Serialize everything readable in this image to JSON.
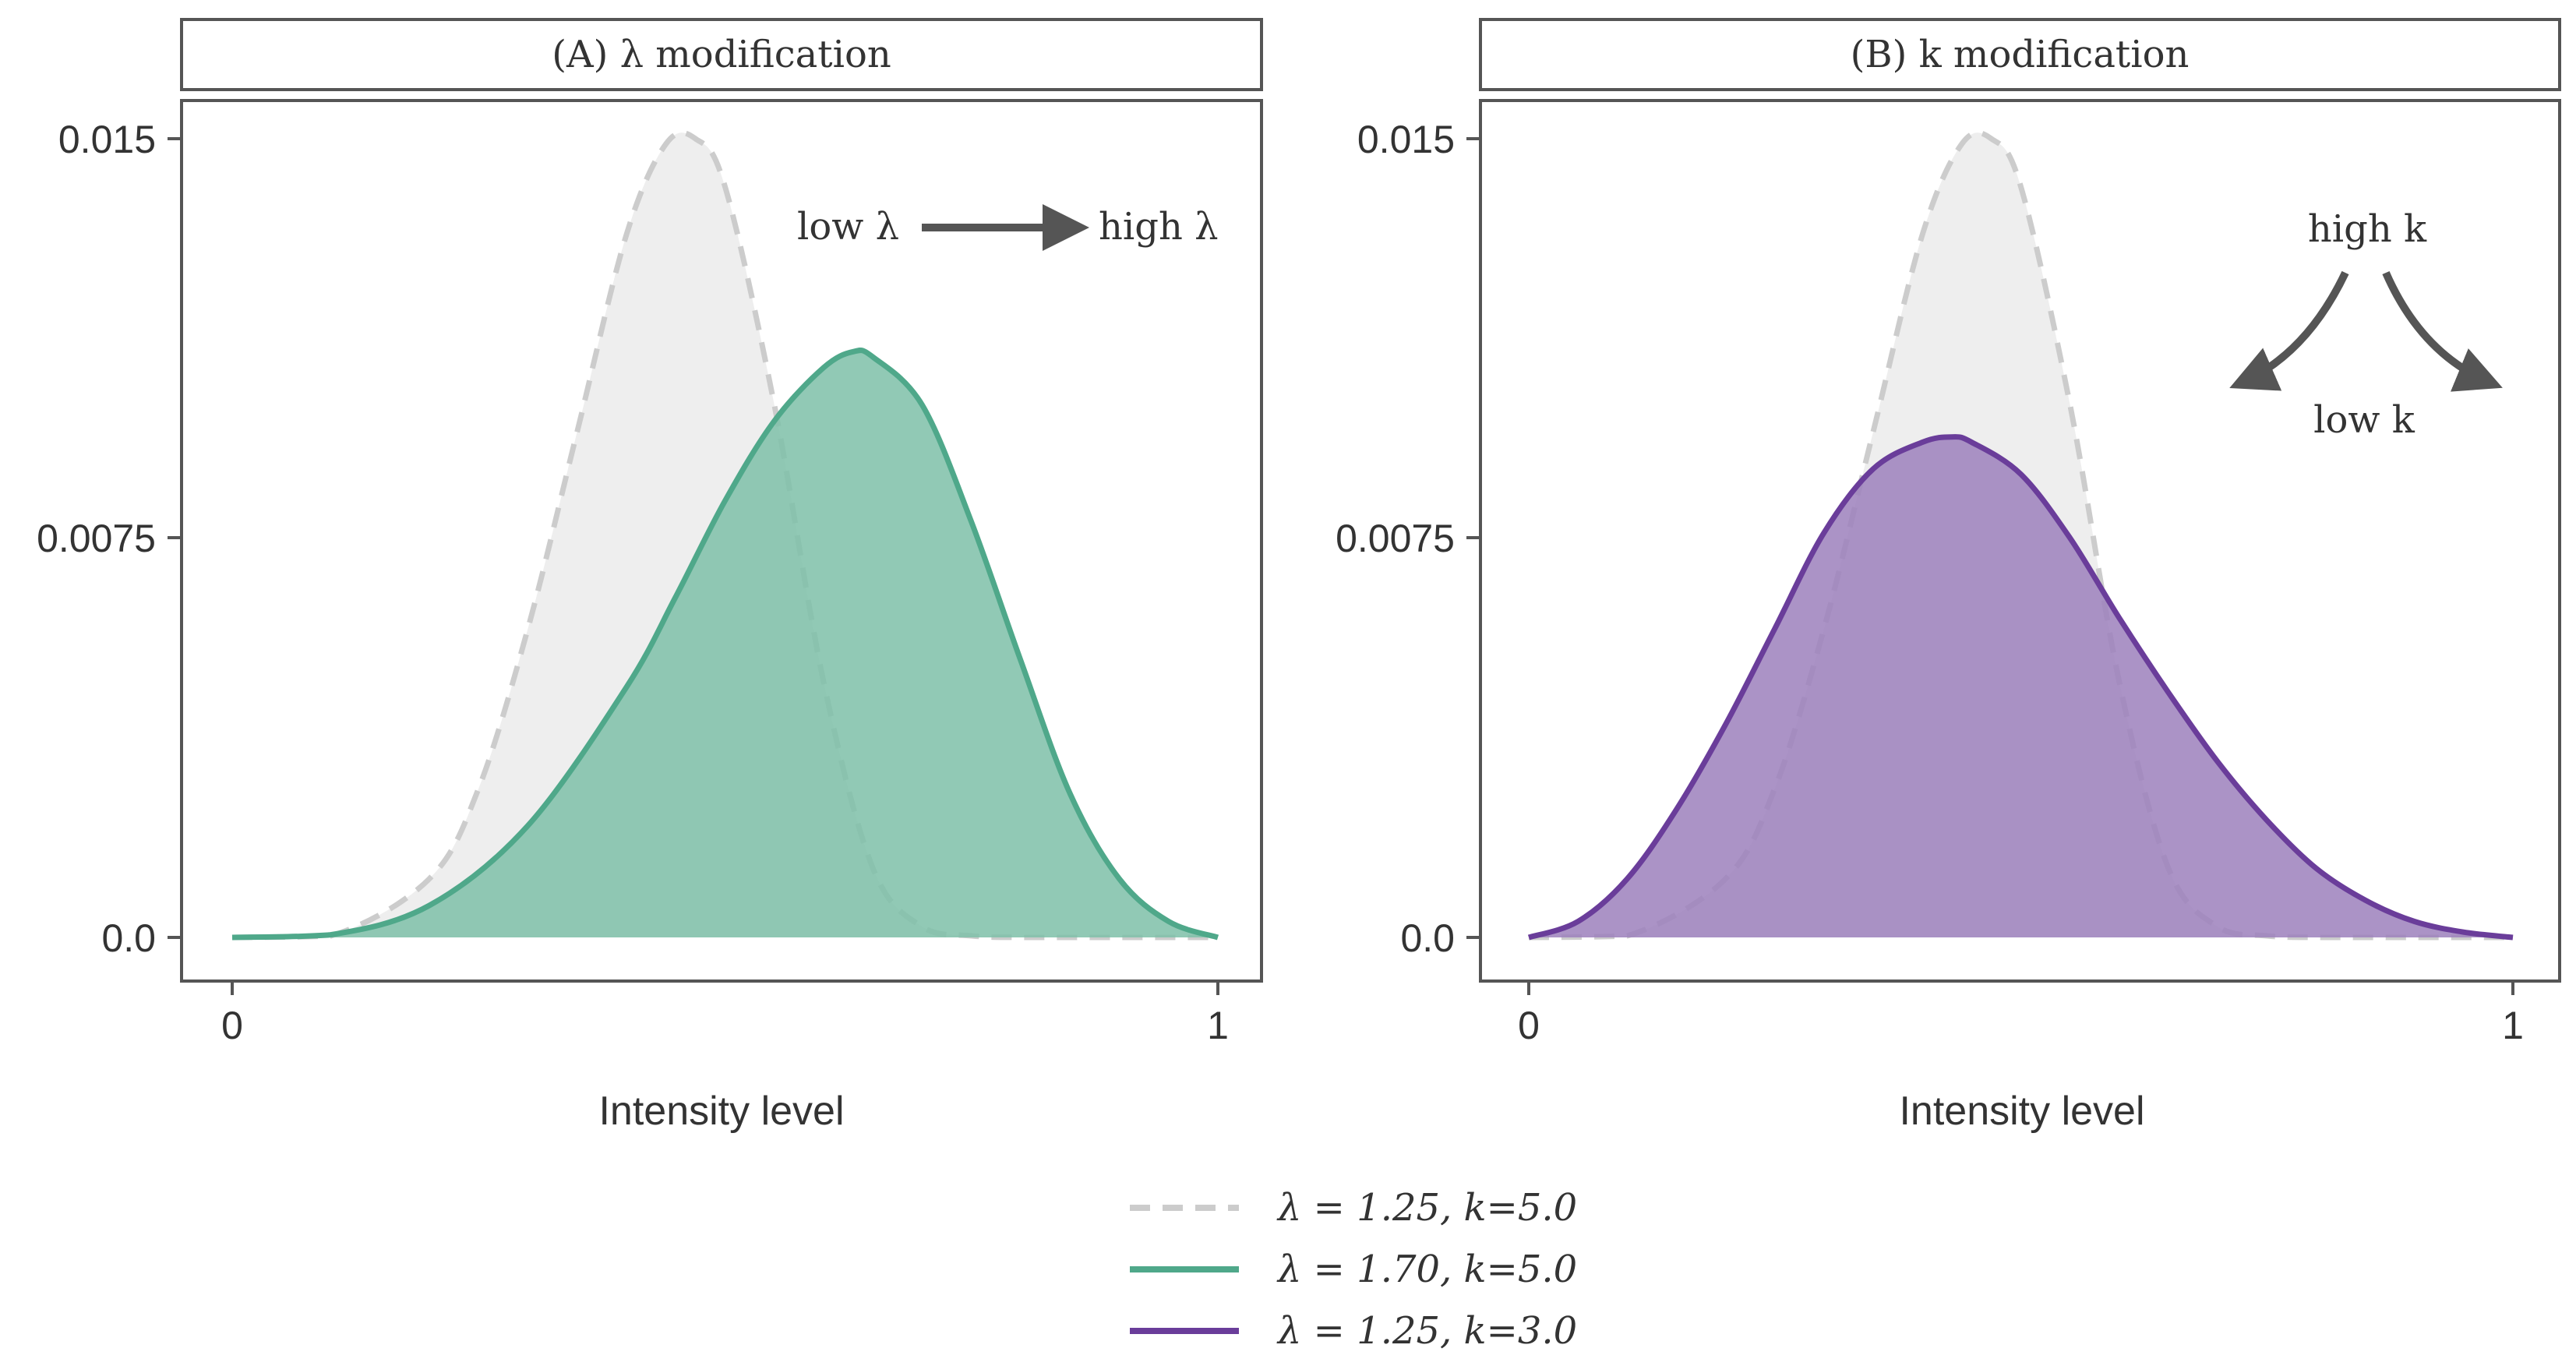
{
  "chart_data": [
    {
      "type": "area",
      "panel_title": "(A) λ modification",
      "xlabel": "Intensity level",
      "ylabel": "",
      "xlim": [
        0,
        1
      ],
      "ylim": [
        -0.0008,
        0.0158
      ],
      "xticks": [
        "0",
        "1"
      ],
      "yticks": [
        "0.0",
        "0.0075",
        "0.015"
      ],
      "annotation": {
        "left": "low λ",
        "right": "high λ",
        "arrow": "left-to-right"
      },
      "series": [
        {
          "name": "λ = 1.25,  k=5.0",
          "style": "dashed",
          "color": "#cccccc",
          "fill": "#eeeeee",
          "x": [
            0,
            0.1,
            0.2,
            0.25,
            0.3,
            0.35,
            0.4,
            0.44,
            0.47,
            0.5,
            0.55,
            0.6,
            0.65,
            0.7,
            0.75,
            0.8,
            0.9,
            1
          ],
          "y": [
            0,
            3e-05,
            0.0011,
            0.0028,
            0.0058,
            0.0095,
            0.0132,
            0.0149,
            0.015,
            0.0141,
            0.01,
            0.0048,
            0.0013,
            0.0002,
            3e-05,
            0,
            0,
            0
          ]
        },
        {
          "name": "λ = 1.70,  k=5.0",
          "style": "solid",
          "color": "#4fa88a",
          "fill": "#7ebfa8",
          "x": [
            0,
            0.1,
            0.2,
            0.3,
            0.4,
            0.45,
            0.5,
            0.55,
            0.6,
            0.63,
            0.65,
            0.7,
            0.75,
            0.8,
            0.85,
            0.9,
            0.95,
            1
          ],
          "y": [
            0,
            5e-05,
            0.0006,
            0.0021,
            0.0047,
            0.0064,
            0.0082,
            0.0097,
            0.0107,
            0.011,
            0.0109,
            0.01,
            0.0078,
            0.0052,
            0.0027,
            0.0011,
            0.0003,
            0
          ]
        }
      ]
    },
    {
      "type": "area",
      "panel_title": "(B) k modification",
      "xlabel": "Intensity level",
      "ylabel": "",
      "xlim": [
        0,
        1
      ],
      "ylim": [
        -0.0008,
        0.0158
      ],
      "xticks": [
        "0",
        "1"
      ],
      "yticks": [
        "0.0",
        "0.0075",
        "0.015"
      ],
      "annotation": {
        "top": "high k",
        "bottom": "low k",
        "arrow": "splits to both sides"
      },
      "series": [
        {
          "name": "λ = 1.25,  k=5.0",
          "style": "dashed",
          "color": "#cccccc",
          "fill": "#eeeeee",
          "x": [
            0,
            0.1,
            0.2,
            0.25,
            0.3,
            0.35,
            0.4,
            0.44,
            0.47,
            0.5,
            0.55,
            0.6,
            0.65,
            0.7,
            0.75,
            0.8,
            0.9,
            1
          ],
          "y": [
            0,
            3e-05,
            0.0011,
            0.0028,
            0.0058,
            0.0095,
            0.0132,
            0.0149,
            0.015,
            0.0141,
            0.01,
            0.0048,
            0.0013,
            0.0002,
            3e-05,
            0,
            0,
            0
          ]
        },
        {
          "name": "λ = 1.25,  k=3.0",
          "style": "solid",
          "color": "#6a3d9a",
          "fill": "#9c80bc",
          "x": [
            0,
            0.05,
            0.1,
            0.15,
            0.2,
            0.25,
            0.3,
            0.35,
            0.4,
            0.43,
            0.45,
            0.5,
            0.55,
            0.6,
            0.65,
            0.7,
            0.75,
            0.8,
            0.85,
            0.9,
            0.95,
            1
          ],
          "y": [
            0,
            0.0003,
            0.0011,
            0.0024,
            0.004,
            0.0058,
            0.0076,
            0.0088,
            0.0093,
            0.0094,
            0.0093,
            0.0087,
            0.0075,
            0.006,
            0.0046,
            0.0033,
            0.0022,
            0.0013,
            0.0007,
            0.0003,
            0.0001,
            0
          ]
        }
      ]
    }
  ],
  "legend": {
    "items": [
      {
        "label": "λ = 1.25,  k=5.0",
        "style": "dashed",
        "color": "#cccccc"
      },
      {
        "label": "λ = 1.70,  k=5.0",
        "style": "solid",
        "color": "#4fa88a"
      },
      {
        "label": "λ = 1.25,  k=3.0",
        "style": "solid",
        "color": "#6a3d9a"
      }
    ]
  }
}
